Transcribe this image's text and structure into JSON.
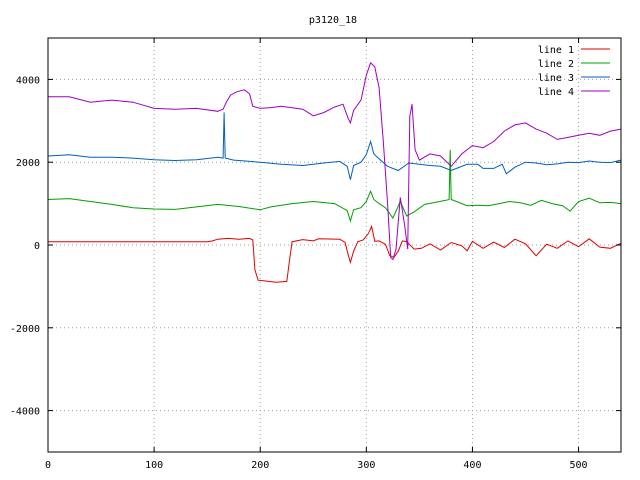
{
  "chart_data": {
    "type": "line",
    "title": "p3120_18",
    "xlabel": "",
    "ylabel": "",
    "xlim": [
      0,
      540
    ],
    "ylim": [
      -5000,
      5000
    ],
    "x_ticks": [
      0,
      100,
      200,
      300,
      400,
      500
    ],
    "y_ticks": [
      -4000,
      -2000,
      0,
      2000,
      4000
    ],
    "grid": true,
    "legend_position": "top-right",
    "series": [
      {
        "name": "line 1",
        "color": "#e00000",
        "points": [
          [
            0,
            80
          ],
          [
            50,
            80
          ],
          [
            100,
            80
          ],
          [
            150,
            80
          ],
          [
            155,
            100
          ],
          [
            160,
            140
          ],
          [
            170,
            160
          ],
          [
            180,
            140
          ],
          [
            190,
            160
          ],
          [
            193,
            120
          ],
          [
            195,
            -600
          ],
          [
            198,
            -850
          ],
          [
            205,
            -870
          ],
          [
            215,
            -900
          ],
          [
            225,
            -880
          ],
          [
            228,
            -300
          ],
          [
            230,
            80
          ],
          [
            240,
            130
          ],
          [
            250,
            100
          ],
          [
            255,
            150
          ],
          [
            275,
            140
          ],
          [
            280,
            60
          ],
          [
            283,
            -250
          ],
          [
            285,
            -420
          ],
          [
            288,
            -150
          ],
          [
            292,
            80
          ],
          [
            297,
            120
          ],
          [
            302,
            280
          ],
          [
            305,
            450
          ],
          [
            308,
            90
          ],
          [
            312,
            100
          ],
          [
            318,
            20
          ],
          [
            322,
            -250
          ],
          [
            326,
            -300
          ],
          [
            330,
            -150
          ],
          [
            334,
            100
          ],
          [
            338,
            80
          ],
          [
            345,
            -100
          ],
          [
            352,
            -80
          ],
          [
            360,
            30
          ],
          [
            370,
            -120
          ],
          [
            380,
            60
          ],
          [
            390,
            -20
          ],
          [
            395,
            -140
          ],
          [
            400,
            90
          ],
          [
            410,
            -80
          ],
          [
            420,
            70
          ],
          [
            430,
            -60
          ],
          [
            440,
            140
          ],
          [
            450,
            30
          ],
          [
            460,
            -260
          ],
          [
            470,
            20
          ],
          [
            480,
            -80
          ],
          [
            490,
            100
          ],
          [
            500,
            -40
          ],
          [
            510,
            150
          ],
          [
            520,
            -50
          ],
          [
            530,
            -80
          ],
          [
            540,
            40
          ]
        ]
      },
      {
        "name": "line 2",
        "color": "#00a000",
        "points": [
          [
            0,
            1100
          ],
          [
            20,
            1120
          ],
          [
            40,
            1050
          ],
          [
            60,
            980
          ],
          [
            80,
            900
          ],
          [
            100,
            870
          ],
          [
            120,
            860
          ],
          [
            140,
            920
          ],
          [
            160,
            980
          ],
          [
            180,
            930
          ],
          [
            200,
            850
          ],
          [
            210,
            920
          ],
          [
            230,
            1000
          ],
          [
            250,
            1050
          ],
          [
            270,
            1000
          ],
          [
            282,
            830
          ],
          [
            285,
            580
          ],
          [
            288,
            850
          ],
          [
            295,
            900
          ],
          [
            300,
            1050
          ],
          [
            304,
            1300
          ],
          [
            307,
            1100
          ],
          [
            312,
            1000
          ],
          [
            318,
            900
          ],
          [
            325,
            650
          ],
          [
            332,
            1050
          ],
          [
            338,
            700
          ],
          [
            345,
            800
          ],
          [
            355,
            980
          ],
          [
            365,
            1030
          ],
          [
            375,
            1080
          ],
          [
            378,
            1100
          ],
          [
            379,
            2300
          ],
          [
            380,
            1100
          ],
          [
            385,
            1050
          ],
          [
            395,
            950
          ],
          [
            405,
            960
          ],
          [
            415,
            950
          ],
          [
            425,
            1000
          ],
          [
            435,
            1050
          ],
          [
            445,
            1020
          ],
          [
            455,
            960
          ],
          [
            465,
            1080
          ],
          [
            475,
            1000
          ],
          [
            485,
            950
          ],
          [
            492,
            820
          ],
          [
            500,
            1050
          ],
          [
            510,
            1130
          ],
          [
            520,
            1020
          ],
          [
            530,
            1030
          ],
          [
            540,
            1000
          ]
        ]
      },
      {
        "name": "line 3",
        "color": "#0060c0",
        "points": [
          [
            0,
            2150
          ],
          [
            20,
            2180
          ],
          [
            40,
            2120
          ],
          [
            60,
            2120
          ],
          [
            80,
            2100
          ],
          [
            100,
            2060
          ],
          [
            120,
            2040
          ],
          [
            140,
            2060
          ],
          [
            160,
            2120
          ],
          [
            165,
            2100
          ],
          [
            166,
            3200
          ],
          [
            167,
            2100
          ],
          [
            175,
            2050
          ],
          [
            200,
            2000
          ],
          [
            220,
            1950
          ],
          [
            240,
            1920
          ],
          [
            260,
            1980
          ],
          [
            275,
            2020
          ],
          [
            282,
            1900
          ],
          [
            285,
            1580
          ],
          [
            288,
            1920
          ],
          [
            295,
            2000
          ],
          [
            300,
            2180
          ],
          [
            304,
            2500
          ],
          [
            307,
            2200
          ],
          [
            312,
            2080
          ],
          [
            320,
            1900
          ],
          [
            330,
            1800
          ],
          [
            340,
            1980
          ],
          [
            350,
            1950
          ],
          [
            360,
            1920
          ],
          [
            370,
            1900
          ],
          [
            380,
            1800
          ],
          [
            385,
            1850
          ],
          [
            395,
            1950
          ],
          [
            405,
            1950
          ],
          [
            410,
            1850
          ],
          [
            420,
            1850
          ],
          [
            428,
            1950
          ],
          [
            432,
            1720
          ],
          [
            440,
            1880
          ],
          [
            450,
            2000
          ],
          [
            460,
            1980
          ],
          [
            470,
            1940
          ],
          [
            480,
            1960
          ],
          [
            490,
            2000
          ],
          [
            500,
            1990
          ],
          [
            510,
            2030
          ],
          [
            520,
            2000
          ],
          [
            530,
            1990
          ],
          [
            540,
            2050
          ]
        ]
      },
      {
        "name": "line 4",
        "color": "#a000c0",
        "points": [
          [
            0,
            3580
          ],
          [
            20,
            3580
          ],
          [
            40,
            3450
          ],
          [
            60,
            3500
          ],
          [
            80,
            3450
          ],
          [
            100,
            3300
          ],
          [
            120,
            3280
          ],
          [
            140,
            3300
          ],
          [
            160,
            3230
          ],
          [
            165,
            3280
          ],
          [
            168,
            3450
          ],
          [
            172,
            3620
          ],
          [
            178,
            3700
          ],
          [
            185,
            3750
          ],
          [
            190,
            3650
          ],
          [
            193,
            3350
          ],
          [
            200,
            3300
          ],
          [
            210,
            3320
          ],
          [
            220,
            3350
          ],
          [
            240,
            3280
          ],
          [
            250,
            3120
          ],
          [
            260,
            3200
          ],
          [
            270,
            3330
          ],
          [
            278,
            3400
          ],
          [
            283,
            3050
          ],
          [
            285,
            2950
          ],
          [
            288,
            3250
          ],
          [
            295,
            3500
          ],
          [
            300,
            4100
          ],
          [
            304,
            4400
          ],
          [
            308,
            4300
          ],
          [
            312,
            3800
          ],
          [
            316,
            2500
          ],
          [
            320,
            1000
          ],
          [
            323,
            -300
          ],
          [
            325,
            -350
          ],
          [
            328,
            -100
          ],
          [
            332,
            1150
          ],
          [
            336,
            500
          ],
          [
            339,
            -100
          ],
          [
            341,
            3100
          ],
          [
            343,
            3400
          ],
          [
            346,
            2300
          ],
          [
            350,
            2050
          ],
          [
            360,
            2200
          ],
          [
            370,
            2150
          ],
          [
            380,
            1900
          ],
          [
            390,
            2200
          ],
          [
            400,
            2400
          ],
          [
            410,
            2350
          ],
          [
            420,
            2500
          ],
          [
            430,
            2750
          ],
          [
            440,
            2900
          ],
          [
            450,
            2950
          ],
          [
            460,
            2800
          ],
          [
            470,
            2700
          ],
          [
            480,
            2550
          ],
          [
            490,
            2600
          ],
          [
            500,
            2650
          ],
          [
            510,
            2700
          ],
          [
            520,
            2650
          ],
          [
            530,
            2750
          ],
          [
            540,
            2800
          ]
        ]
      }
    ]
  }
}
